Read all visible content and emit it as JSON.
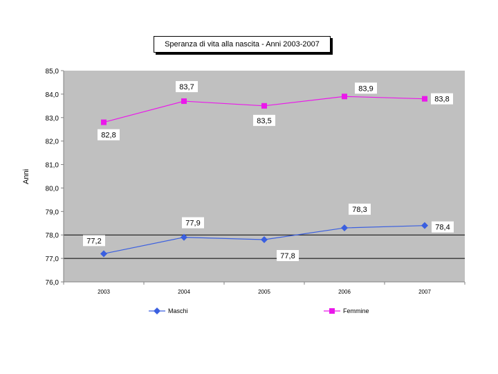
{
  "chart_data": {
    "type": "line",
    "title": "Speranza di vita alla nascita - Anni 2003-2007",
    "xlabel": "",
    "ylabel": "Anni",
    "categories": [
      "2003",
      "2004",
      "2005",
      "2006",
      "2007"
    ],
    "ylim": [
      76.0,
      85.0
    ],
    "yticks": [
      "76,0",
      "77,0",
      "78,0",
      "79,0",
      "80,0",
      "81,0",
      "82,0",
      "83,0",
      "84,0",
      "85,0"
    ],
    "series": [
      {
        "name": "Maschi",
        "color": "#3a5fe0",
        "marker": "diamond",
        "values": [
          77.2,
          77.9,
          77.8,
          78.3,
          78.4
        ],
        "labels": [
          "77,2",
          "77,9",
          "77,8",
          "78,3",
          "78,4"
        ]
      },
      {
        "name": "Femmine",
        "color": "#ea18ea",
        "marker": "square",
        "values": [
          82.8,
          83.7,
          83.5,
          83.9,
          83.8
        ],
        "labels": [
          "82,8",
          "83,7",
          "83,5",
          "83,9",
          "83,8"
        ]
      }
    ],
    "legend_position": "bottom",
    "grid": "dark lines at 77,0 and 78,0"
  }
}
